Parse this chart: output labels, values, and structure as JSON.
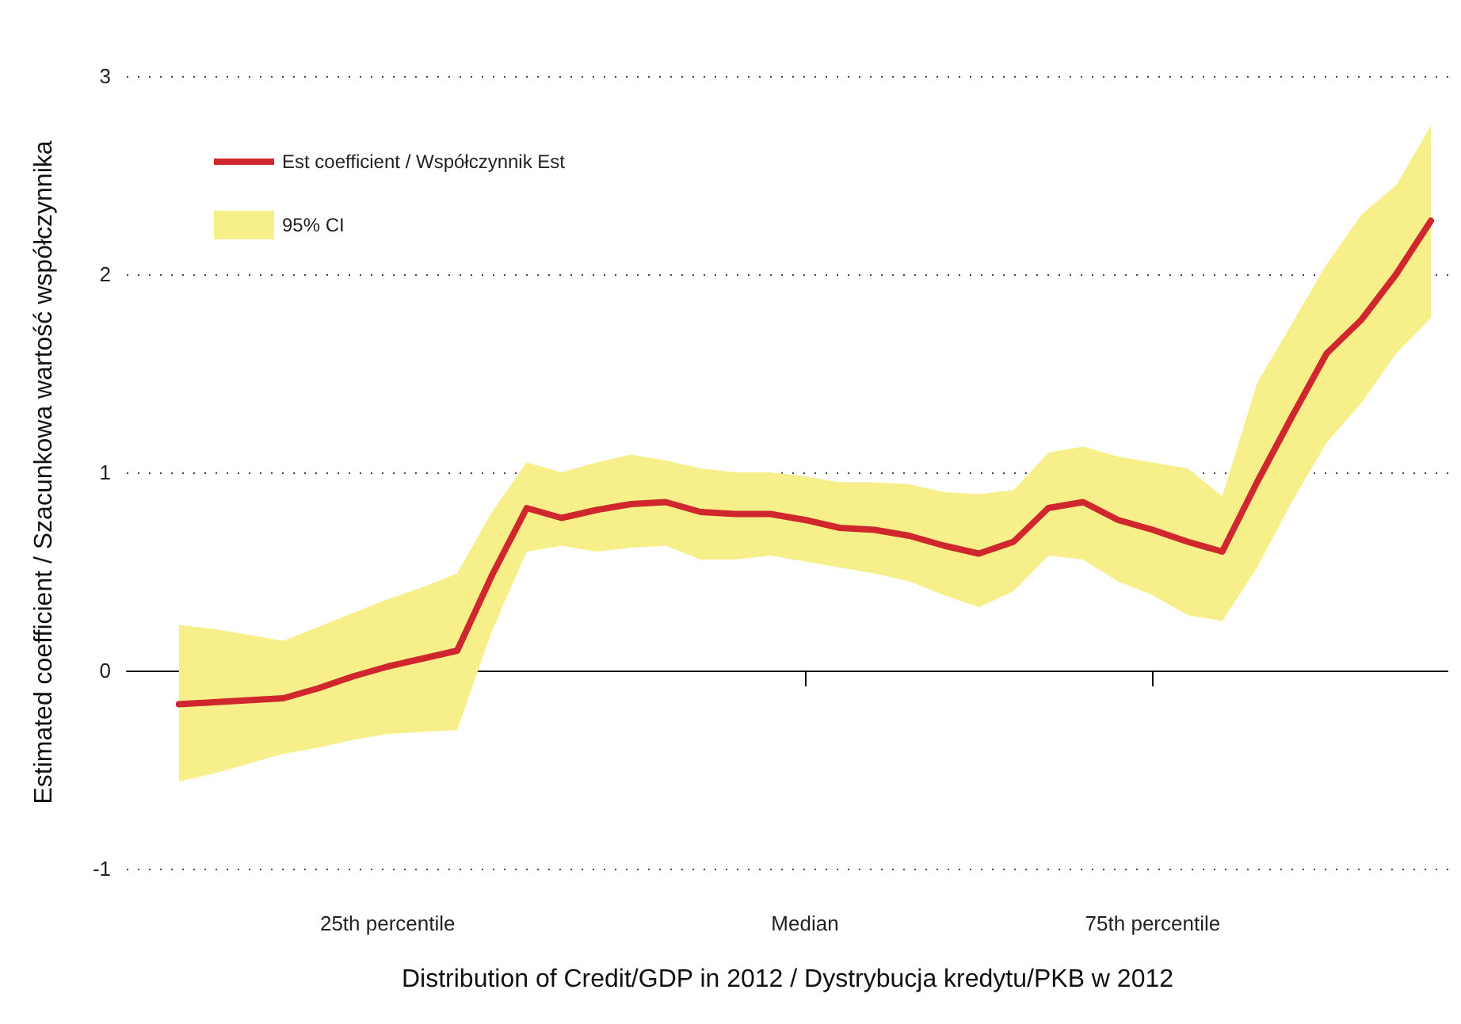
{
  "chart_data": {
    "type": "line",
    "xlabel": "Distribution of Credit/GDP in 2012 / Dystrybucja kredytu/PKB w 2012",
    "ylabel": "Estimated coefficient / Szacunkowa wartość współczynnika",
    "categories": [
      null,
      null,
      null,
      null,
      null,
      null,
      null,
      "25th percentile",
      null,
      null,
      null,
      null,
      null,
      null,
      null,
      null,
      null,
      null,
      null,
      "Median",
      null,
      null,
      null,
      null,
      null,
      null,
      null,
      null,
      null,
      "75th percentile",
      null,
      null,
      null,
      null,
      null,
      null,
      null,
      null
    ],
    "series": [
      {
        "name": "Est coefficient / Współczynnik Est",
        "color": "#d0262d",
        "values": [
          null,
          -0.17,
          -0.16,
          -0.15,
          -0.14,
          -0.09,
          -0.03,
          0.02,
          0.06,
          0.1,
          0.48,
          0.82,
          0.77,
          0.81,
          0.84,
          0.85,
          0.8,
          0.79,
          0.79,
          0.76,
          0.72,
          0.71,
          0.68,
          0.63,
          0.59,
          0.65,
          0.82,
          0.85,
          0.76,
          0.71,
          0.65,
          0.6,
          0.95,
          1.28,
          1.6,
          1.77,
          2.0,
          2.27
        ]
      },
      {
        "name": "95% CI",
        "type": "area",
        "color": "#f7f08a",
        "values": [
          null,
          null,
          null,
          null,
          null,
          null,
          null,
          null,
          null,
          null,
          null,
          null,
          null,
          null,
          null,
          null,
          null,
          null,
          null,
          null,
          null,
          null,
          null,
          null,
          null,
          null,
          null,
          null,
          null,
          null,
          null,
          null,
          null,
          null,
          null,
          null,
          null,
          null
        ],
        "lower": [
          null,
          -0.56,
          -0.52,
          -0.47,
          -0.42,
          -0.39,
          -0.35,
          -0.32,
          -0.31,
          -0.3,
          0.2,
          0.6,
          0.63,
          0.6,
          0.62,
          0.63,
          0.56,
          0.56,
          0.58,
          0.55,
          0.52,
          0.49,
          0.45,
          0.38,
          0.32,
          0.4,
          0.58,
          0.56,
          0.45,
          0.38,
          0.28,
          0.25,
          0.52,
          0.85,
          1.15,
          1.35,
          1.6,
          1.78
        ],
        "upper": [
          null,
          0.23,
          0.21,
          0.18,
          0.15,
          0.22,
          0.29,
          0.36,
          0.42,
          0.49,
          0.8,
          1.05,
          1.0,
          1.05,
          1.09,
          1.06,
          1.02,
          1.0,
          1.0,
          0.98,
          0.95,
          0.95,
          0.94,
          0.9,
          0.89,
          0.91,
          1.1,
          1.13,
          1.08,
          1.05,
          1.02,
          0.88,
          1.45,
          1.75,
          2.05,
          2.3,
          2.45,
          2.75
        ]
      }
    ],
    "ylim": [
      -1,
      3
    ],
    "yticks": [
      -1,
      0,
      1,
      2,
      3
    ],
    "grid": "y",
    "legend": "top left",
    "marker": "none",
    "line_style": "solid"
  }
}
